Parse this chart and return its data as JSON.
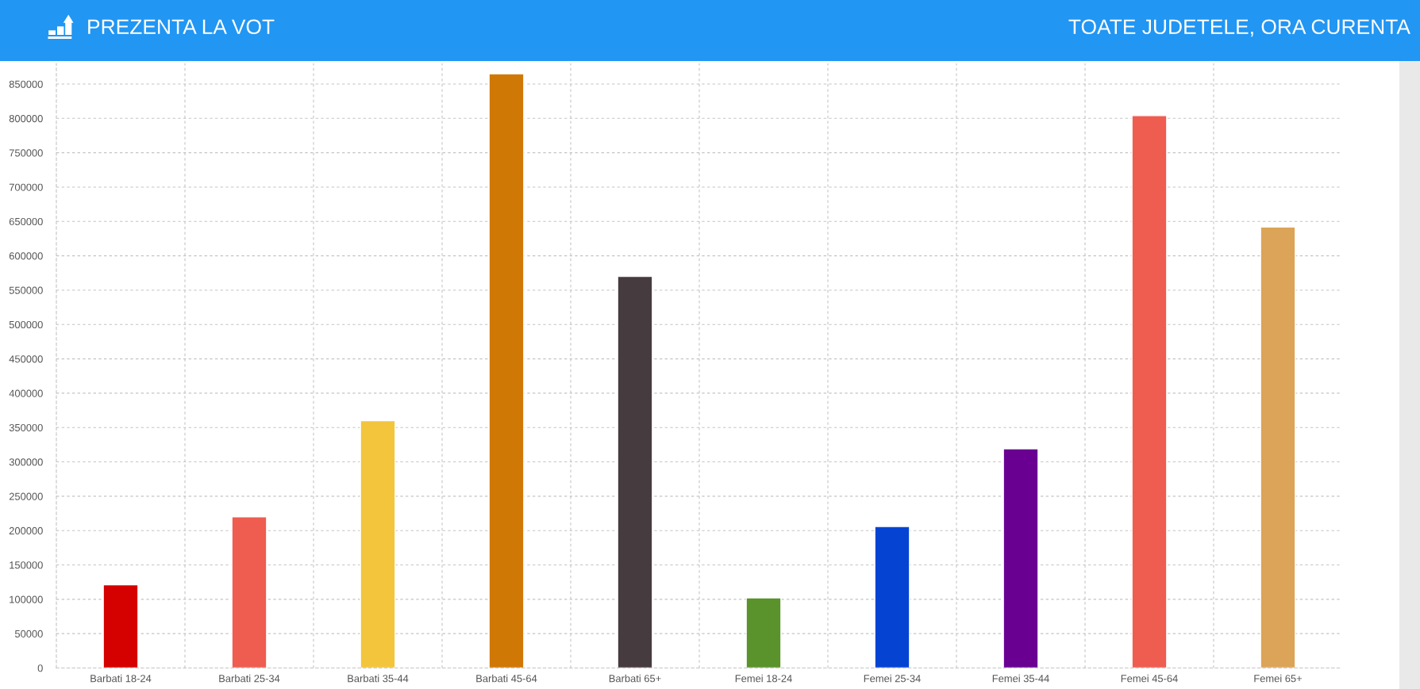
{
  "chart_data": {
    "type": "bar",
    "title": "PREZENTA LA VOT",
    "subtitle": "TOATE JUDETELE, ORA CURENTA",
    "categories": [
      "Barbati 18-24",
      "Barbati 25-34",
      "Barbati 35-44",
      "Barbati 45-64",
      "Barbati 65+",
      "Femei 18-24",
      "Femei 25-34",
      "Femei 35-44",
      "Femei 45-64",
      "Femei 65+"
    ],
    "values": [
      121000,
      220000,
      360000,
      865000,
      570000,
      102000,
      206000,
      319000,
      804000,
      642000
    ],
    "colors": [
      "#d50000",
      "#ef5c50",
      "#f2c53d",
      "#d07805",
      "#463b3f",
      "#5a922b",
      "#0544d3",
      "#690092",
      "#ef5c50",
      "#dca458"
    ],
    "ylim": [
      0,
      880000
    ],
    "yticks": [
      0,
      50000,
      100000,
      150000,
      200000,
      250000,
      300000,
      350000,
      400000,
      450000,
      500000,
      550000,
      600000,
      650000,
      700000,
      750000,
      800000,
      850000
    ],
    "grid": true
  }
}
